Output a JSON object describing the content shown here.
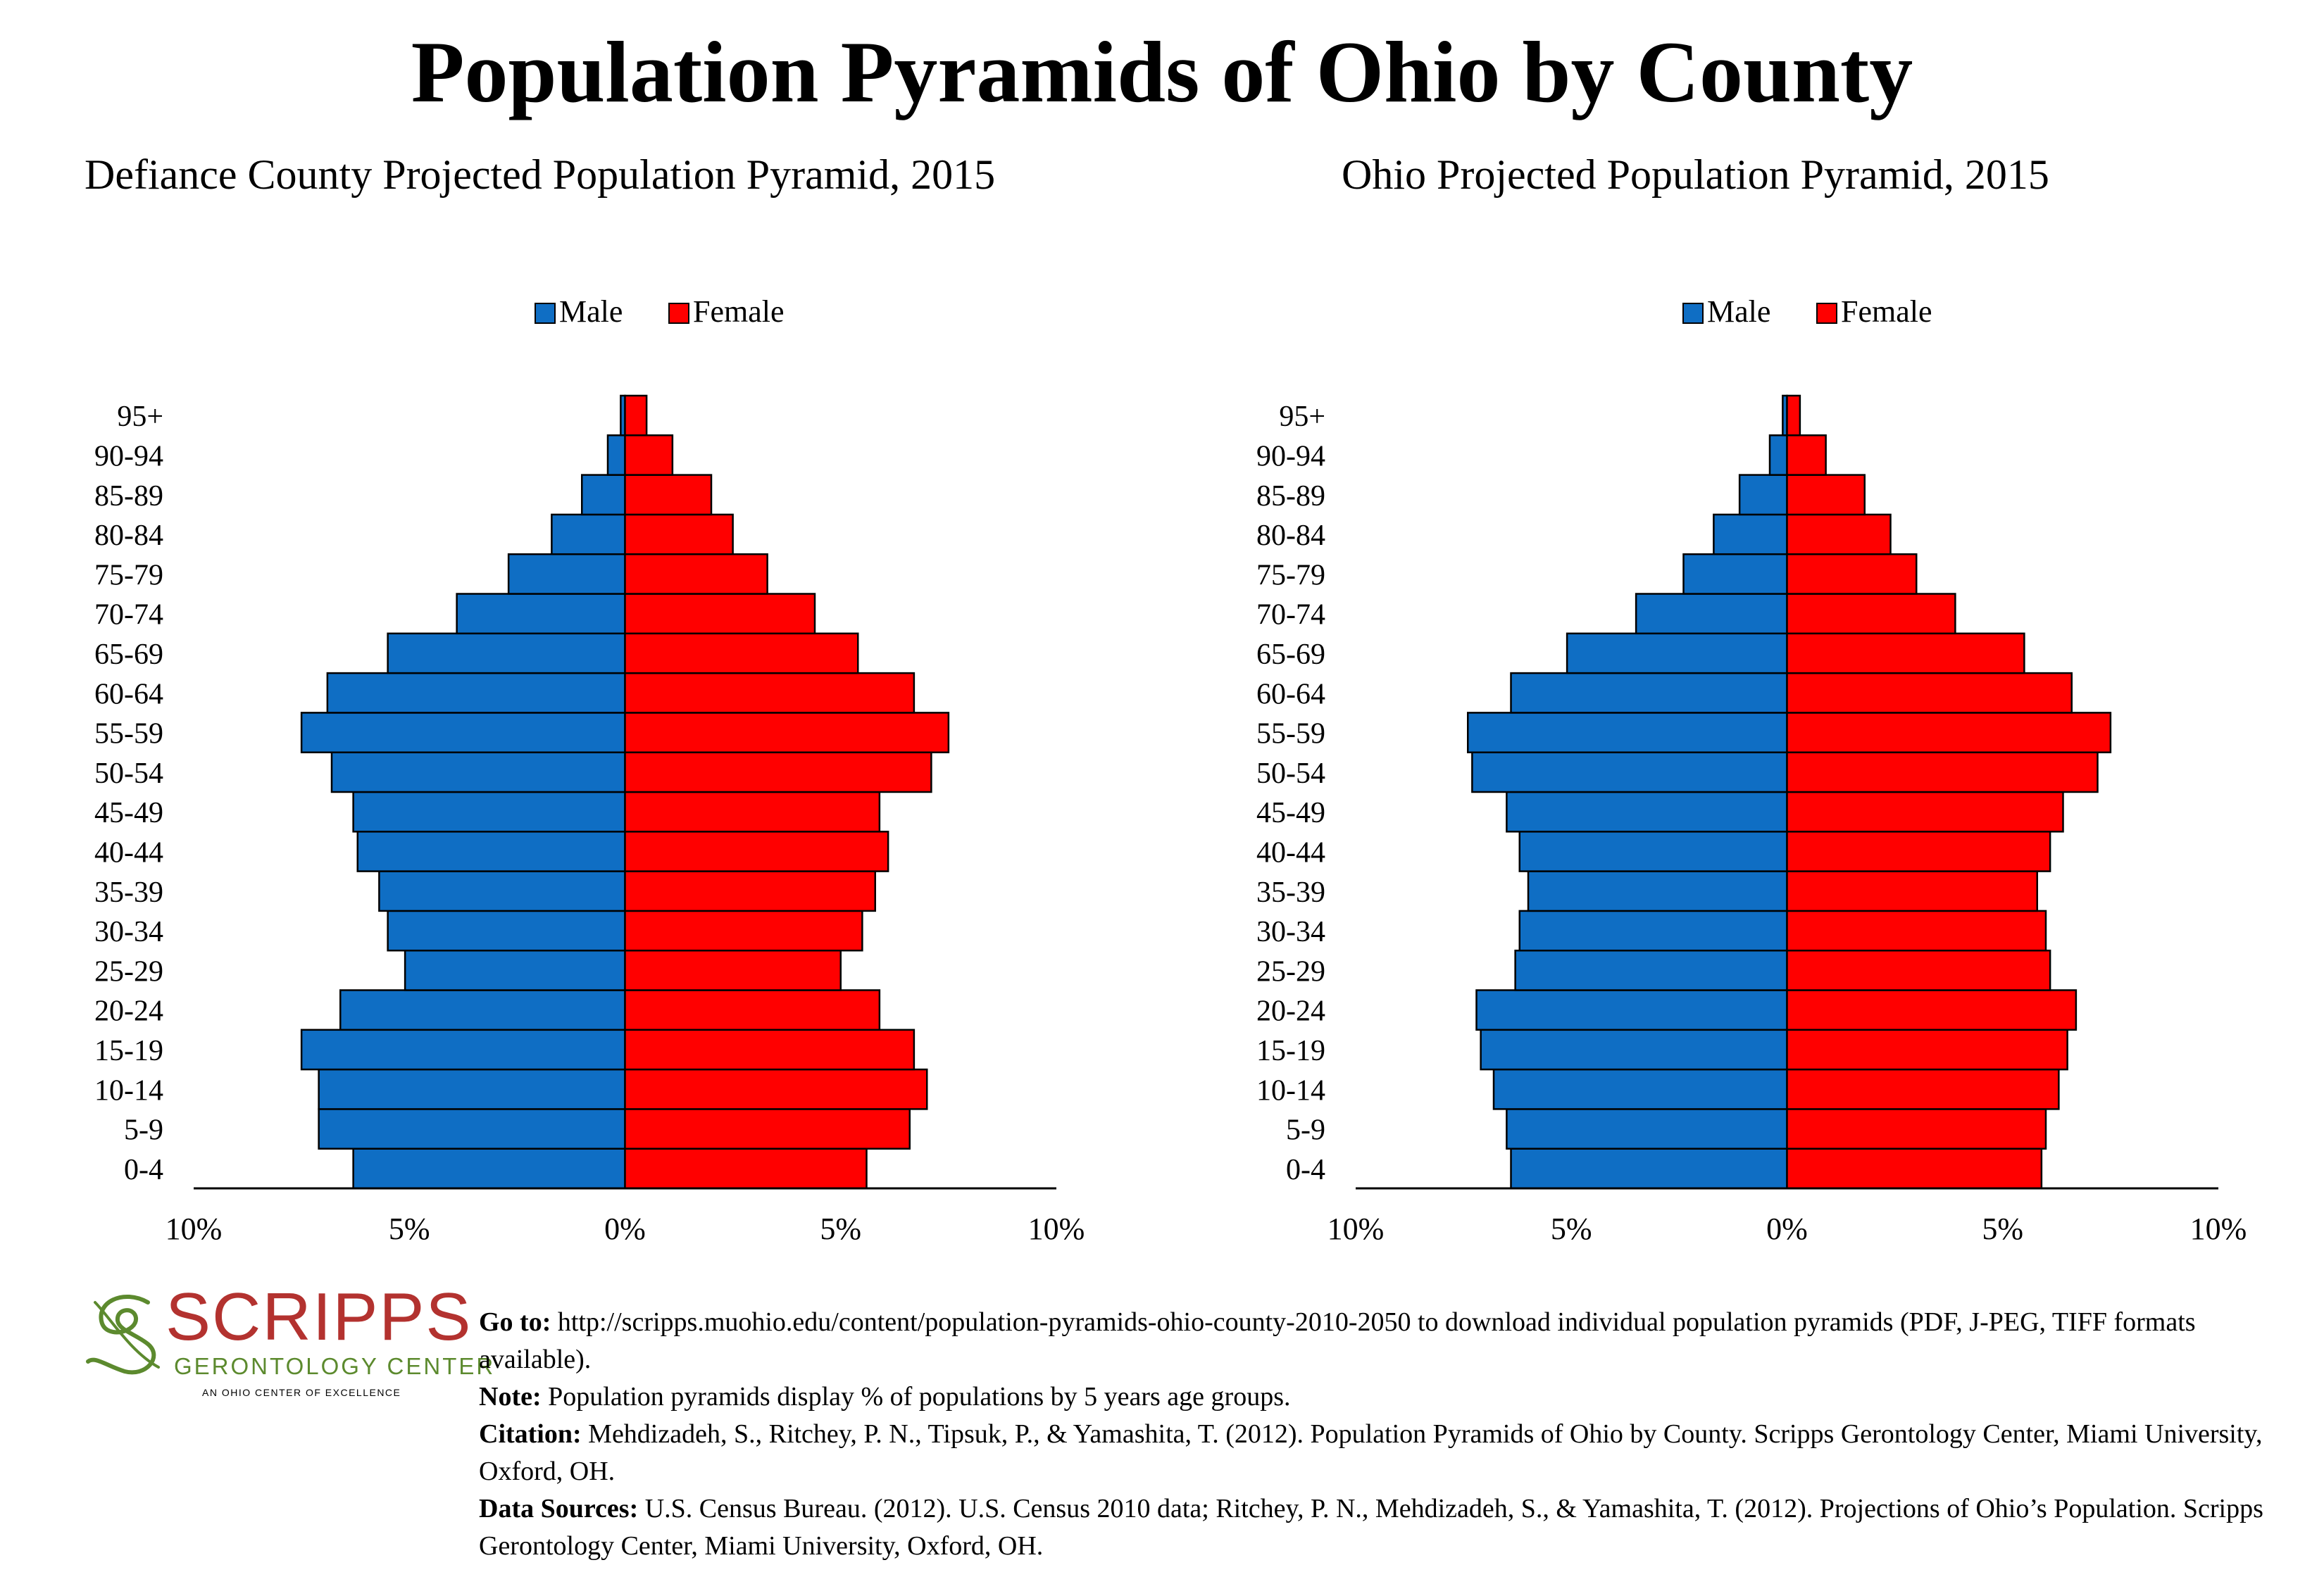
{
  "title": "Population Pyramids of Ohio by County",
  "legend": {
    "male": "Male",
    "female": "Female"
  },
  "colors": {
    "male": "#0f6ec4",
    "female": "#ff0000",
    "outline": "#000000"
  },
  "chart_data": [
    {
      "type": "bar",
      "orientation": "horizontal-pyramid",
      "title": "Defiance County Projected Population Pyramid, 2015",
      "categories": [
        "0-4",
        "5-9",
        "10-14",
        "15-19",
        "20-24",
        "25-29",
        "30-34",
        "35-39",
        "40-44",
        "45-49",
        "50-54",
        "55-59",
        "60-64",
        "65-69",
        "70-74",
        "75-79",
        "80-84",
        "85-89",
        "90-94",
        "95+"
      ],
      "series": [
        {
          "name": "Male",
          "values": [
            6.3,
            7.1,
            7.1,
            7.5,
            6.6,
            5.1,
            5.5,
            5.7,
            6.2,
            6.3,
            6.8,
            7.5,
            6.9,
            5.5,
            3.9,
            2.7,
            1.7,
            1.0,
            0.4,
            0.1
          ]
        },
        {
          "name": "Female",
          "values": [
            5.6,
            6.6,
            7.0,
            6.7,
            5.9,
            5.0,
            5.5,
            5.8,
            6.1,
            5.9,
            7.1,
            7.5,
            6.7,
            5.4,
            4.4,
            3.3,
            2.5,
            2.0,
            1.1,
            0.5
          ]
        }
      ],
      "xlim": [
        -10,
        10
      ],
      "xticks": [
        "10%",
        "5%",
        "0%",
        "5%",
        "10%"
      ],
      "legend_position": "top-center"
    },
    {
      "type": "bar",
      "orientation": "horizontal-pyramid",
      "title": "Ohio Projected Population Pyramid, 2015",
      "categories": [
        "0-4",
        "5-9",
        "10-14",
        "15-19",
        "20-24",
        "25-29",
        "30-34",
        "35-39",
        "40-44",
        "45-49",
        "50-54",
        "55-59",
        "60-64",
        "65-69",
        "70-74",
        "75-79",
        "80-84",
        "85-89",
        "90-94",
        "95+"
      ],
      "series": [
        {
          "name": "Male",
          "values": [
            6.4,
            6.5,
            6.8,
            7.1,
            7.2,
            6.3,
            6.2,
            6.0,
            6.2,
            6.5,
            7.3,
            7.4,
            6.4,
            5.1,
            3.5,
            2.4,
            1.7,
            1.1,
            0.4,
            0.1
          ]
        },
        {
          "name": "Female",
          "values": [
            5.9,
            6.0,
            6.3,
            6.5,
            6.7,
            6.1,
            6.0,
            5.8,
            6.1,
            6.4,
            7.2,
            7.5,
            6.6,
            5.5,
            3.9,
            3.0,
            2.4,
            1.8,
            0.9,
            0.3
          ]
        }
      ],
      "xlim": [
        -10,
        10
      ],
      "xticks": [
        "10%",
        "5%",
        "0%",
        "5%",
        "10%"
      ],
      "legend_position": "top-center"
    }
  ],
  "logo": {
    "word": "SCRIPPS",
    "sub": "GERONTOLOGY CENTER",
    "tag": "AN OHIO CENTER OF EXCELLENCE"
  },
  "notes": {
    "goto_label": "Go to:",
    "goto_text": " http://scripps.muohio.edu/content/population-pyramids-ohio-county-2010-2050 to download individual population pyramids (PDF, J-PEG, TIFF formats available).",
    "note_label": "Note:",
    "note_text": " Population pyramids display % of populations by 5 years age groups.",
    "citation_label": "Citation:",
    "citation_text": " Mehdizadeh, S., Ritchey, P. N., Tipsuk, P., & Yamashita, T. (2012). Population Pyramids of Ohio by County. Scripps Gerontology Center, Miami University, Oxford, OH.",
    "sources_label": "Data Sources:",
    "sources_text": " U.S. Census Bureau. (2012). U.S. Census 2010 data; Ritchey, P. N., Mehdizadeh, S., & Yamashita, T. (2012). Projections of Ohio’s Population. Scripps Gerontology Center, Miami University, Oxford, OH."
  }
}
